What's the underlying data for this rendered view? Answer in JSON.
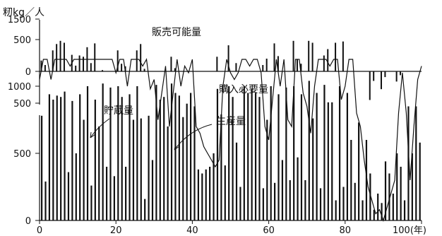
{
  "chart_data": [
    {
      "type": "bar",
      "ylabel": "籾kg／人",
      "title": "販売可能量",
      "ylim": [
        0,
        550
      ],
      "yticks": [
        0,
        500
      ],
      "x": [
        0,
        1,
        3,
        4,
        5,
        6,
        8,
        9,
        10,
        11,
        12,
        13,
        14,
        16,
        20,
        21,
        22,
        25,
        26,
        27,
        34,
        35,
        46,
        49,
        51,
        58,
        59,
        61,
        62,
        66,
        67,
        68,
        70,
        71,
        74,
        75,
        77,
        79
      ],
      "values": [
        170,
        100,
        330,
        430,
        480,
        450,
        260,
        90,
        250,
        230,
        380,
        130,
        440,
        20,
        330,
        120,
        80,
        330,
        430,
        40,
        230,
        50,
        230,
        410,
        130,
        100,
        200,
        440,
        240,
        480,
        190,
        120,
        480,
        450,
        250,
        350,
        450,
        470
      ]
    },
    {
      "type": "bar",
      "title": "購入必要量",
      "ylim": [
        0,
        550
      ],
      "yticks": [
        500
      ],
      "x": [
        86,
        87,
        89,
        90,
        93,
        94
      ],
      "values": [
        450,
        150,
        280,
        90,
        160,
        60
      ]
    },
    {
      "type": "bar",
      "xlabel": "100(年)",
      "xlim": [
        0,
        100
      ],
      "ylim": [
        0,
        1600
      ],
      "xticks": [
        0,
        20,
        40,
        60,
        80
      ],
      "yticks": [
        0,
        500,
        1000,
        1500
      ],
      "annotations": [
        "貯蔵量",
        "生産量"
      ],
      "series": [
        {
          "name": "生産量",
          "type": "bar",
          "x": [
            0,
            1,
            2,
            3,
            4,
            5,
            6,
            7,
            8,
            9,
            10,
            11,
            12,
            13,
            14,
            15,
            16,
            17,
            18,
            19,
            20,
            21,
            22,
            23,
            24,
            25,
            26,
            27,
            28,
            29,
            30,
            31,
            32,
            33,
            34,
            35,
            36,
            37,
            38,
            39,
            40,
            41,
            42,
            43,
            44,
            45,
            46,
            47,
            48,
            49,
            50,
            51,
            52,
            53,
            54,
            55,
            56,
            57,
            58,
            59,
            60,
            61,
            62,
            63,
            64,
            65,
            66,
            67,
            68,
            69,
            70,
            71,
            72,
            73,
            74,
            75,
            76,
            77,
            78,
            79,
            80,
            81,
            82,
            83,
            84,
            85,
            86,
            87,
            88,
            89,
            90,
            91,
            92,
            93,
            94,
            95,
            96,
            97,
            98,
            99
          ],
          "values": [
            780,
            290,
            940,
            900,
            930,
            920,
            960,
            360,
            890,
            500,
            940,
            750,
            1000,
            260,
            900,
            700,
            1020,
            400,
            990,
            330,
            1000,
            920,
            400,
            940,
            750,
            1000,
            760,
            160,
            780,
            450,
            1010,
            900,
            920,
            700,
            1020,
            950,
            930,
            770,
            870,
            950,
            850,
            380,
            350,
            380,
            400,
            500,
            980,
            790,
            410,
            1000,
            920,
            580,
            250,
            1000,
            950,
            980,
            950,
            920,
            240,
            750,
            1000,
            280,
            940,
            450,
            990,
            300,
            1000,
            470,
            940,
            300,
            1040,
            760,
            950,
            240,
            1010,
            880,
            880,
            150,
            1000,
            250,
            950,
            600,
            280,
            730,
            150,
            600,
            350,
            80,
            200,
            130,
            440,
            350,
            200,
            500,
            400,
            150,
            850,
            500,
            850,
            580
          ]
        },
        {
          "name": "貯蔵量",
          "type": "line",
          "x": [
            0,
            1,
            2,
            3,
            4,
            5,
            6,
            7,
            8,
            9,
            10,
            11,
            12,
            13,
            14,
            15,
            16,
            17,
            18,
            19,
            20,
            21,
            22,
            23,
            24,
            25,
            26,
            27,
            28,
            29,
            30,
            31,
            32,
            33,
            34,
            35,
            36,
            37,
            38,
            39,
            40,
            41,
            42,
            43,
            44,
            45,
            46,
            47,
            48,
            49,
            50,
            51,
            52,
            53,
            54,
            55,
            56,
            57,
            58,
            59,
            60,
            61,
            62,
            63,
            64,
            65,
            66,
            67,
            68,
            69,
            70,
            71,
            72,
            73,
            74,
            75,
            76,
            77,
            78,
            79,
            80,
            81,
            82,
            83,
            84,
            85,
            86,
            87,
            88,
            89,
            90,
            91,
            92,
            93,
            94,
            95,
            96,
            97,
            98,
            99,
            100
          ],
          "values": [
            1050,
            1200,
            1200,
            1050,
            1200,
            1200,
            1200,
            1200,
            1150,
            1200,
            1200,
            1200,
            1200,
            1200,
            1200,
            1200,
            1200,
            1200,
            1200,
            1200,
            1100,
            1200,
            1200,
            1000,
            1200,
            1200,
            1200,
            1150,
            1200,
            980,
            1050,
            750,
            950,
            1150,
            700,
            950,
            1200,
            1000,
            1150,
            1100,
            1200,
            700,
            650,
            550,
            500,
            450,
            400,
            450,
            1000,
            1200,
            1100,
            1050,
            1100,
            1200,
            1200,
            1150,
            1200,
            1200,
            1100,
            700,
            600,
            900,
            1200,
            1000,
            1200,
            750,
            700,
            1200,
            1200,
            950,
            850,
            650,
            1000,
            1200,
            1200,
            1200,
            1150,
            1200,
            1200,
            900,
            1000,
            1200,
            1200,
            800,
            700,
            450,
            250,
            150,
            50,
            80,
            0,
            100,
            200,
            300,
            800,
            1100,
            800,
            300,
            700,
            1050,
            1150
          ]
        }
      ]
    }
  ]
}
